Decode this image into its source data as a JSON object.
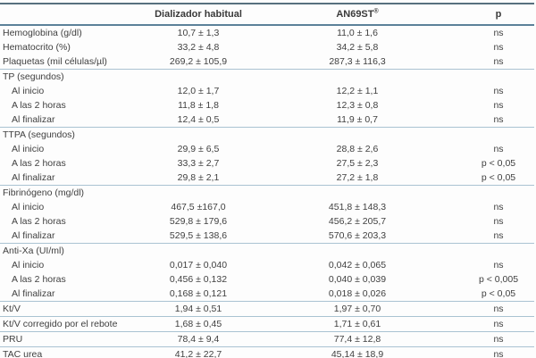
{
  "table": {
    "columns": [
      "",
      "Dializador habitual",
      "AN69ST",
      "p"
    ],
    "registered_symbol": "®",
    "accent_colors": {
      "dark_rule": "#57707e",
      "header_rule": "#5c8199",
      "light_rule": "#aac3d2"
    },
    "rows": [
      {
        "type": "data",
        "label": "Hemoglobina (g/dl)",
        "v1": "10,7 ± 1,3",
        "v2": "11,0 ± 1,6",
        "p": "ns"
      },
      {
        "type": "data",
        "label": "Hematocrito (%)",
        "v1": "33,2 ± 4,8",
        "v2": "34,2 ± 5,8",
        "p": "ns"
      },
      {
        "type": "data",
        "label": "Plaquetas (mil células/µl)",
        "v1": "269,2 ± 105,9",
        "v2": "287,3 ± 116,3",
        "p": "ns"
      },
      {
        "type": "section",
        "label": "TP (segundos)",
        "line": true
      },
      {
        "type": "data",
        "indent": true,
        "label": "Al inicio",
        "v1": "12,0 ± 1,7",
        "v2": "12,2 ± 1,1",
        "p": "ns"
      },
      {
        "type": "data",
        "indent": true,
        "label": "A las 2 horas",
        "v1": "11,8 ± 1,8",
        "v2": "12,3 ± 0,8",
        "p": "ns"
      },
      {
        "type": "data",
        "indent": true,
        "label": "Al finalizar",
        "v1": "12,4 ± 0,5",
        "v2": "11,9 ± 0,7",
        "p": "ns"
      },
      {
        "type": "section",
        "label": "TTPA (segundos)",
        "line": true
      },
      {
        "type": "data",
        "indent": true,
        "label": "Al inicio",
        "v1": "29,9 ± 6,5",
        "v2": "28,8 ± 2,6",
        "p": "ns"
      },
      {
        "type": "data",
        "indent": true,
        "label": "A las 2 horas",
        "v1": "33,3 ± 2,7",
        "v2": "27,5 ± 2,3",
        "p": "p < 0,05"
      },
      {
        "type": "data",
        "indent": true,
        "label": "Al finalizar",
        "v1": "29,8 ± 2,1",
        "v2": "27,2 ± 1,8",
        "p": "p < 0,05"
      },
      {
        "type": "section",
        "label": "Fibrinógeno (mg/dl)",
        "line": true
      },
      {
        "type": "data",
        "indent": true,
        "label": "Al inicio",
        "v1": "467,5 ±167,0",
        "v2": "451,8 ± 148,3",
        "p": "ns"
      },
      {
        "type": "data",
        "indent": true,
        "label": "A las 2 horas",
        "v1": "529,8 ± 179,6",
        "v2": "456,2 ± 205,7",
        "p": "ns"
      },
      {
        "type": "data",
        "indent": true,
        "label": "Al finalizar",
        "v1": "529,5 ± 138,6",
        "v2": "570,6 ± 203,3",
        "p": "ns"
      },
      {
        "type": "section",
        "label": "Anti-Xa (UI/ml)",
        "line": true
      },
      {
        "type": "data",
        "indent": true,
        "label": "Al inicio",
        "v1": "0,017 ± 0,040",
        "v2": "0,042 ± 0,065",
        "p": "ns"
      },
      {
        "type": "data",
        "indent": true,
        "label": "A las 2 horas",
        "v1": "0,456 ± 0,132",
        "v2": "0,040 ± 0,039",
        "p": "p < 0,005"
      },
      {
        "type": "data",
        "indent": true,
        "label": "Al finalizar",
        "v1": "0,168 ± 0,121",
        "v2": "0,018 ± 0,026",
        "p": "p < 0,05"
      },
      {
        "type": "data",
        "label": "Kt/V",
        "v1": "1,94 ± 0,51",
        "v2": "1,97 ± 0,70",
        "p": "ns",
        "line": true
      },
      {
        "type": "data",
        "label": "Kt/V corregido por el rebote",
        "v1": "1,68 ± 0,45",
        "v2": "1,71 ± 0,61",
        "p": "ns",
        "line": true
      },
      {
        "type": "data",
        "label": "PRU",
        "v1": "78,4 ± 9,4",
        "v2": "77,4 ± 12,8",
        "p": "ns",
        "line": true
      },
      {
        "type": "data",
        "label": "TAC urea",
        "v1": "41,2 ± 22,7",
        "v2": "45,14 ± 18,9",
        "p": "ns",
        "line": true
      }
    ]
  }
}
